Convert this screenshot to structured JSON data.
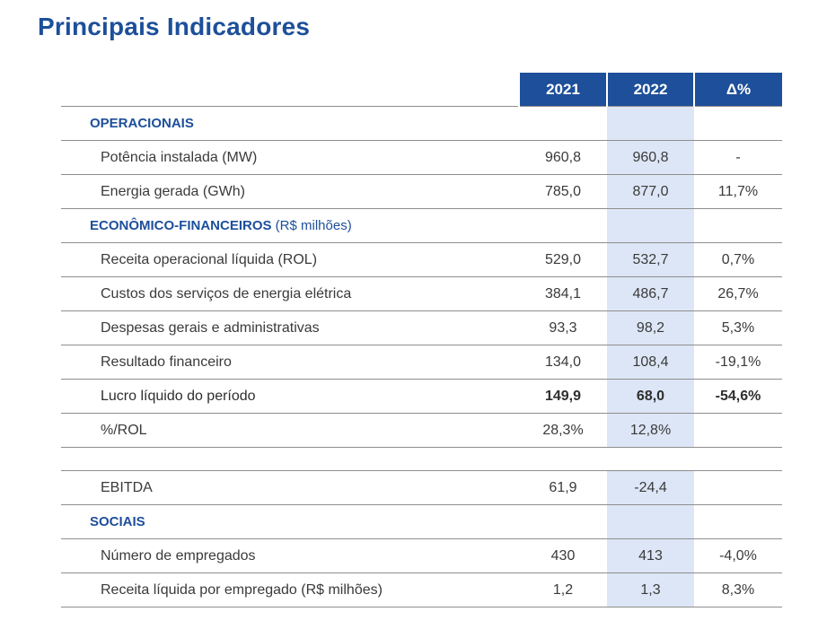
{
  "title": "Principais Indicadores",
  "headers": {
    "col1": "2021",
    "col2": "2022",
    "col3": "Δ%"
  },
  "sections": {
    "operacionais": "OPERACIONAIS",
    "economico": "ECONÔMICO-FINANCEIROS",
    "economico_unit": "(R$ milhões)",
    "sociais": "SOCIAIS"
  },
  "rows": {
    "potencia": {
      "label": "Potência instalada (MW)",
      "v2021": "960,8",
      "v2022": "960,8",
      "delta": "-"
    },
    "energia": {
      "label": "Energia gerada (GWh)",
      "v2021": "785,0",
      "v2022": "877,0",
      "delta": "11,7%"
    },
    "rol": {
      "label": "Receita operacional líquida (ROL)",
      "v2021": "529,0",
      "v2022": "532,7",
      "delta": "0,7%"
    },
    "custos": {
      "label": "Custos dos serviços de energia elétrica",
      "v2021": "384,1",
      "v2022": "486,7",
      "delta": "26,7%"
    },
    "despesas": {
      "label": "Despesas gerais e administrativas",
      "v2021": "93,3",
      "v2022": "98,2",
      "delta": "5,3%"
    },
    "resultado": {
      "label": "Resultado financeiro",
      "v2021": "134,0",
      "v2022": "108,4",
      "delta": "-19,1%"
    },
    "lucro": {
      "label": "Lucro líquido do período",
      "v2021": "149,9",
      "v2022": "68,0",
      "delta": "-54,6%"
    },
    "pct_rol": {
      "label": "%/ROL",
      "v2021": "28,3%",
      "v2022": "12,8%",
      "delta": ""
    },
    "ebitda": {
      "label": "EBITDA",
      "v2021": "61,9",
      "v2022": "-24,4",
      "delta": ""
    },
    "empregados": {
      "label": "Número de empregados",
      "v2021": "430",
      "v2022": "413",
      "delta": "-4,0%"
    },
    "receita_empregado": {
      "label": "Receita líquida por empregado (R$ milhões)",
      "v2021": "1,2",
      "v2022": "1,3",
      "delta": "8,3%"
    }
  },
  "colors": {
    "accent": "#1d4f9a",
    "highlight": "#dde6f6",
    "rule": "#8e8e8e"
  }
}
